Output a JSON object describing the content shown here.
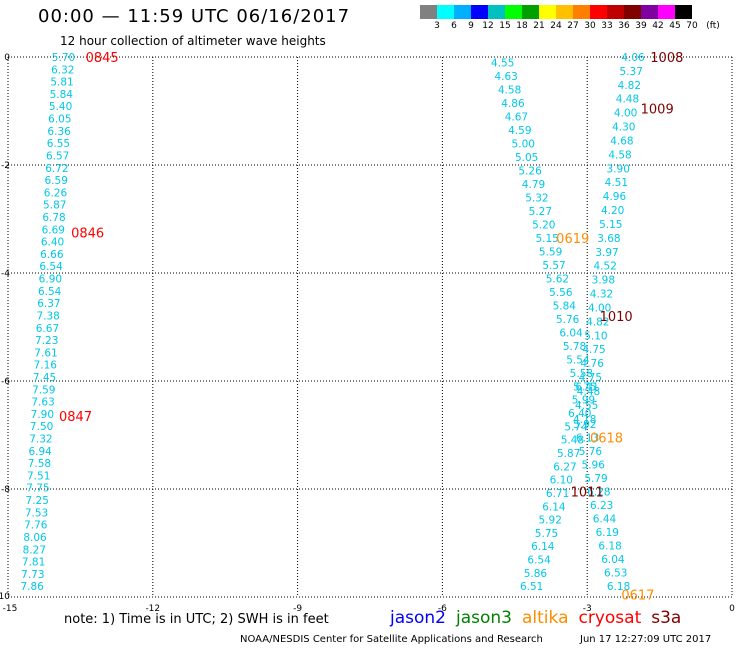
{
  "header": {
    "title": "00:00 — 11:59 UTC 06/16/2017",
    "subtitle": "12 hour collection of altimeter wave heights"
  },
  "scale": {
    "colors": [
      "#808080",
      "#00ffff",
      "#00b0ff",
      "#0000ff",
      "#00c0c0",
      "#00ff00",
      "#00a000",
      "#ffff00",
      "#ffc000",
      "#ff8000",
      "#ff0000",
      "#c00000",
      "#800000",
      "#8000a0",
      "#ff00ff",
      "#000000"
    ],
    "ticks": [
      "3",
      "6",
      "9",
      "12",
      "15",
      "18",
      "21",
      "24",
      "27",
      "30",
      "33",
      "36",
      "39",
      "42",
      "45",
      "70",
      "(ft)"
    ]
  },
  "chart_data": {
    "type": "scatter",
    "xlim": [
      -15,
      0
    ],
    "ylim": [
      -10,
      0
    ],
    "x_ticks": [
      "-15",
      "-12",
      "-9",
      "-6",
      "-3",
      "0"
    ],
    "y_ticks": [
      "0",
      "-2",
      "-4",
      "-6",
      "-8",
      "-10"
    ],
    "grid": true,
    "point_color": "#00c8e8",
    "tracks": [
      {
        "name": "track-west",
        "x_start": -13.85,
        "x_end": -14.5,
        "y_start": 0,
        "y_end": -9.8,
        "values": [
          "5.70",
          "6.32",
          "5.81",
          "5.84",
          "5.40",
          "6.05",
          "6.36",
          "6.55",
          "6.57",
          "6.72",
          "6.59",
          "6.26",
          "5.87",
          "6.78",
          "6.69",
          "6.40",
          "6.66",
          "6.54",
          "6.90",
          "6.54",
          "6.37",
          "7.38",
          "6.67",
          "7.23",
          "7.61",
          "7.16",
          "7.45",
          "7.59",
          "7.63",
          "7.90",
          "7.50",
          "7.32",
          "6.94",
          "7.58",
          "7.51",
          "7.75",
          "7.25",
          "7.53",
          "7.76",
          "8.06",
          "8.27",
          "7.81",
          "7.73",
          "7.86"
        ]
      },
      {
        "name": "track-center",
        "x_start": -4.75,
        "x_end": -3.05,
        "y_start": -0.1,
        "y_end": -6.1,
        "values": [
          "4.55",
          "4.63",
          "4.58",
          "4.86",
          "4.67",
          "4.59",
          "5.00",
          "5.05",
          "5.26",
          "4.79",
          "5.32",
          "5.27",
          "5.20",
          "5.15",
          "5.59",
          "5.57",
          "5.62",
          "5.56",
          "5.84",
          "5.76",
          "6.04",
          "5.78",
          "5.54",
          "5.58",
          "5.75"
        ]
      },
      {
        "name": "track-center-lower",
        "x_start": -3.0,
        "x_end": -4.15,
        "y_start": -6.1,
        "y_end": -9.8,
        "values": [
          "6.41",
          "5.99",
          "6.40",
          "5.74",
          "5.48",
          "5.87",
          "6.27",
          "6.10",
          "6.71",
          "6.14",
          "5.92",
          "5.75",
          "6.14",
          "6.54",
          "5.86",
          "6.51"
        ]
      },
      {
        "name": "track-east",
        "x_start": -2.05,
        "x_end": -3.05,
        "y_start": 0,
        "y_end": -6.7,
        "values": [
          "4.06",
          "5.37",
          "4.82",
          "4.48",
          "4.00",
          "4.30",
          "4.68",
          "4.58",
          "3.90",
          "4.51",
          "4.96",
          "4.20",
          "5.15",
          "3.68",
          "3.97",
          "4.52",
          "3.98",
          "4.32",
          "4.00",
          "4.82",
          "5.10",
          "4.75",
          "4.76",
          "4.75",
          "4.48",
          "4.55",
          "4.18"
        ]
      },
      {
        "name": "track-east-lower",
        "x_start": -3.05,
        "x_end": -2.35,
        "y_start": -6.8,
        "y_end": -9.8,
        "values": [
          "5.92",
          "6.13",
          "5.76",
          "5.96",
          "5.79",
          "6.28",
          "6.23",
          "6.44",
          "6.19",
          "6.18",
          "6.04",
          "6.53",
          "6.18"
        ]
      }
    ],
    "time_labels": [
      {
        "text": "0845",
        "x": -13.05,
        "y": 0,
        "color": "#ff0000"
      },
      {
        "text": "0846",
        "x": -13.35,
        "y": -3.25,
        "color": "#ff0000"
      },
      {
        "text": "0847",
        "x": -13.6,
        "y": -6.65,
        "color": "#ff0000"
      },
      {
        "text": "1008",
        "x": -1.35,
        "y": 0,
        "color": "#800000"
      },
      {
        "text": "1009",
        "x": -1.55,
        "y": -0.95,
        "color": "#800000"
      },
      {
        "text": "1010",
        "x": -2.4,
        "y": -4.8,
        "color": "#800000"
      },
      {
        "text": "1011",
        "x": -3.0,
        "y": -8.05,
        "color": "#800000"
      },
      {
        "text": "0619",
        "x": -3.3,
        "y": -3.35,
        "color": "#ff8c00"
      },
      {
        "text": "0618",
        "x": -2.6,
        "y": -7.05,
        "color": "#ff8c00"
      },
      {
        "text": "0617",
        "x": -1.95,
        "y": -9.95,
        "color": "#ff8c00"
      }
    ]
  },
  "footer": {
    "note": "note:  1) Time is in UTC;  2) SWH is in feet",
    "missions": [
      {
        "label": "jason2",
        "color": "#0000ff"
      },
      {
        "label": "jason3",
        "color": "#008000"
      },
      {
        "label": "altika",
        "color": "#ff8c00"
      },
      {
        "label": "cryosat",
        "color": "#ff0000"
      },
      {
        "label": "s3a",
        "color": "#800000"
      }
    ],
    "credit": "NOAA/NESDIS Center for Satellite Applications and Research",
    "timestamp": "Jun 17 12:27:09 UTC 2017"
  }
}
